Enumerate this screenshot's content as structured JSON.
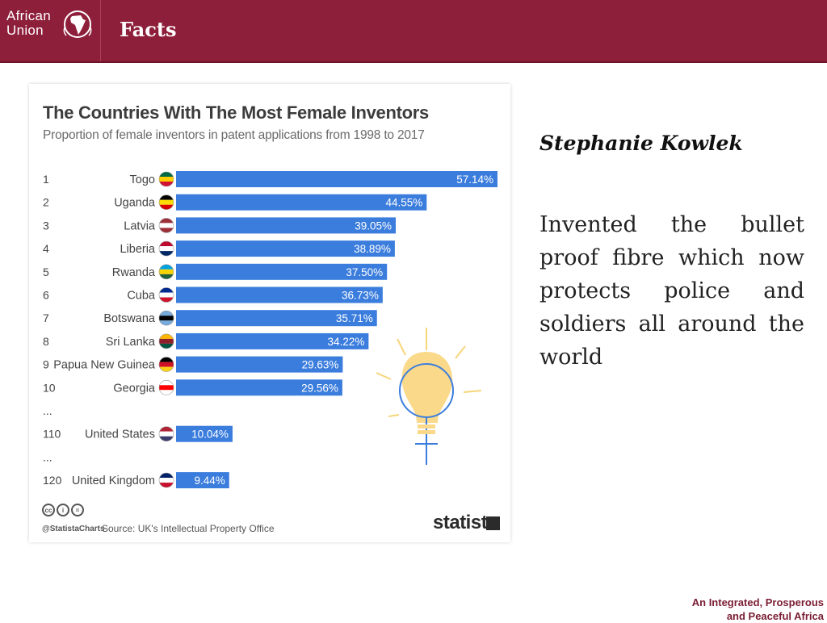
{
  "header": {
    "logo_line1": "African",
    "logo_line2": "Union",
    "title": "Facts"
  },
  "chart_data": {
    "type": "bar",
    "orientation": "horizontal",
    "title": "The Countries With The Most Female Inventors",
    "subtitle": "Proportion of female inventors in patent applications from 1998 to 2017",
    "rows": [
      {
        "rank": "1",
        "category": "Togo",
        "value": 57.14,
        "label": "57.14%"
      },
      {
        "rank": "2",
        "category": "Uganda",
        "value": 44.55,
        "label": "44.55%"
      },
      {
        "rank": "3",
        "category": "Latvia",
        "value": 39.05,
        "label": "39.05%"
      },
      {
        "rank": "4",
        "category": "Liberia",
        "value": 38.89,
        "label": "38.89%"
      },
      {
        "rank": "5",
        "category": "Rwanda",
        "value": 37.5,
        "label": "37.50%"
      },
      {
        "rank": "6",
        "category": "Cuba",
        "value": 36.73,
        "label": "36.73%"
      },
      {
        "rank": "7",
        "category": "Botswana",
        "value": 35.71,
        "label": "35.71%"
      },
      {
        "rank": "8",
        "category": "Sri Lanka",
        "value": 34.22,
        "label": "34.22%"
      },
      {
        "rank": "9",
        "category": "Papua New Guinea",
        "value": 29.63,
        "label": "29.63%"
      },
      {
        "rank": "10",
        "category": "Georgia",
        "value": 29.56,
        "label": "29.56%"
      },
      {
        "rank": "...",
        "category": "",
        "value": null,
        "label": ""
      },
      {
        "rank": "110",
        "category": "United States",
        "value": 10.04,
        "label": "10.04%"
      },
      {
        "rank": "...",
        "category": "",
        "value": null,
        "label": ""
      },
      {
        "rank": "120",
        "category": "United Kingdom",
        "value": 9.44,
        "label": "9.44%"
      }
    ],
    "bar_color": "#3b7ddd",
    "legend": false,
    "grid": false
  },
  "chart_footer": {
    "handle": "@StatistaCharts",
    "source": "Source: UK's Intellectual Property Office",
    "brand": "statista"
  },
  "feature": {
    "name": "Stephanie Kowlek",
    "description": "Invented the bullet proof fibre which now protects police and soldiers all around the world"
  },
  "footer": {
    "tagline_line1": "An Integrated, Prosperous",
    "tagline_line2": "and Peaceful Africa"
  },
  "colors": {
    "header_bg": "#8e1f3a",
    "bar": "#3b7ddd",
    "tagline": "#7a1d33"
  }
}
